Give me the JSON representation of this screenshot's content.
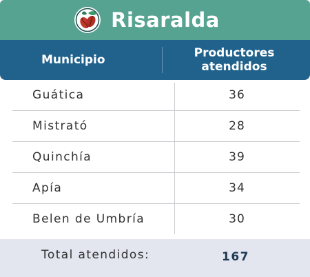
{
  "title": {
    "text": "Risaralda",
    "icon": "coffee-beans-icon"
  },
  "table": {
    "headers": {
      "municipio": "Municipio",
      "productores_line1": "Productores",
      "productores_line2": "atendidos"
    },
    "rows": [
      {
        "municipio": "Guática",
        "productores": "36"
      },
      {
        "municipio": "Mistrató",
        "productores": "28"
      },
      {
        "municipio": "Quinchía",
        "productores": "39"
      },
      {
        "municipio": "Apía",
        "productores": "34"
      },
      {
        "municipio": "Belen de Umbría",
        "productores": "30"
      }
    ],
    "total": {
      "label": "Total atendidos:",
      "value": "167"
    }
  },
  "colors": {
    "title_bar": "#56a391",
    "header_bar": "#20628c",
    "total_bar": "#e3e5ef",
    "bean_red": "#c0392b"
  }
}
